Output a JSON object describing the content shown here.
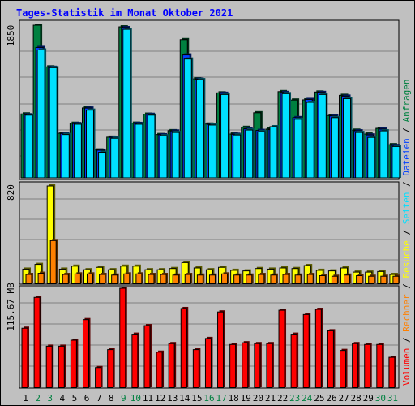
{
  "chart_data": {
    "type": "bar",
    "title": "Tages-Statistik im Monat Oktober 2021",
    "days": [
      "1",
      "2",
      "3",
      "4",
      "5",
      "6",
      "7",
      "8",
      "9",
      "10",
      "11",
      "12",
      "13",
      "14",
      "15",
      "16",
      "17",
      "18",
      "19",
      "20",
      "21",
      "22",
      "23",
      "24",
      "25",
      "26",
      "27",
      "28",
      "29",
      "30",
      "31"
    ],
    "weekend_days": [
      "2",
      "3",
      "9",
      "10",
      "16",
      "17",
      "23",
      "24",
      "30",
      "31"
    ],
    "colors": {
      "anfragen": "#008040",
      "dateien": "#0040ff",
      "seiten": "#00e0ff",
      "besuche": "#ffff00",
      "rechner": "#ff8000",
      "volumen": "#ff0000",
      "title": "#0000ff",
      "weekday_label": "#000000",
      "weekend_label": "#008040",
      "background": "#c0c0c0"
    },
    "panels": [
      {
        "name": "top",
        "scale_label": "1850",
        "ylim": [
          0,
          1850
        ],
        "series": [
          {
            "name": "Anfragen",
            "values": [
              775,
              1850,
              1345,
              541,
              662,
              847,
              338,
              493,
              1830,
              663,
              772,
              525,
              572,
              1675,
              1200,
              652,
              1030,
              531,
              612,
              789,
              591,
              1045,
              943,
              945,
              1040,
              755,
              1000,
              578,
              531,
              600,
              402
            ]
          },
          {
            "name": "Dateien",
            "values": [
              765,
              1580,
              1340,
              538,
              658,
              845,
              335,
              490,
              1820,
              660,
              770,
              522,
              568,
              1490,
              1195,
              648,
              1025,
              528,
              595,
              575,
              585,
              1035,
              730,
              950,
              1035,
              750,
              990,
              570,
              520,
              590,
              392
            ]
          },
          {
            "name": "Seiten",
            "values": [
              760,
              1550,
              1335,
              525,
              650,
              820,
              310,
              480,
              1800,
              650,
              760,
              510,
              550,
              1440,
              1190,
              640,
              1010,
              520,
              580,
              560,
              620,
              1020,
              710,
              915,
              1010,
              730,
              960,
              550,
              490,
              570,
              380
            ]
          }
        ]
      },
      {
        "name": "middle",
        "scale_label": "820",
        "ylim": [
          0,
          820
        ],
        "series": [
          {
            "name": "Besuche",
            "values": [
              120,
              160,
              820,
              120,
              145,
              115,
              135,
              115,
              145,
              145,
              115,
              115,
              125,
              175,
              130,
              115,
              135,
              110,
              105,
              125,
              120,
              130,
              125,
              150,
              110,
              105,
              130,
              95,
              95,
              100,
              75
            ]
          },
          {
            "name": "Rechner",
            "values": [
              75,
              85,
              360,
              75,
              80,
              80,
              75,
              70,
              80,
              80,
              75,
              75,
              70,
              75,
              70,
              70,
              80,
              70,
              70,
              75,
              70,
              75,
              70,
              75,
              65,
              60,
              70,
              65,
              60,
              60,
              60
            ]
          }
        ]
      },
      {
        "name": "bottom",
        "scale_label": "115.67 MB",
        "ylim": [
          0,
          115.67
        ],
        "series": [
          {
            "name": "Volumen",
            "values": [
              69,
              105,
              48,
              48,
              55,
              79,
              23,
              44,
              115.67,
              62,
              72,
              41,
              51,
              92,
              44,
              57,
              88,
              50,
              52,
              51,
              51,
              90,
              62,
              85,
              91,
              66,
              43,
              51,
              50,
              50,
              35
            ]
          }
        ]
      }
    ],
    "side_legend": [
      "Volumen",
      "Rechner",
      "Besuche",
      "Seiten",
      "Dateien",
      "Anfragen"
    ]
  }
}
